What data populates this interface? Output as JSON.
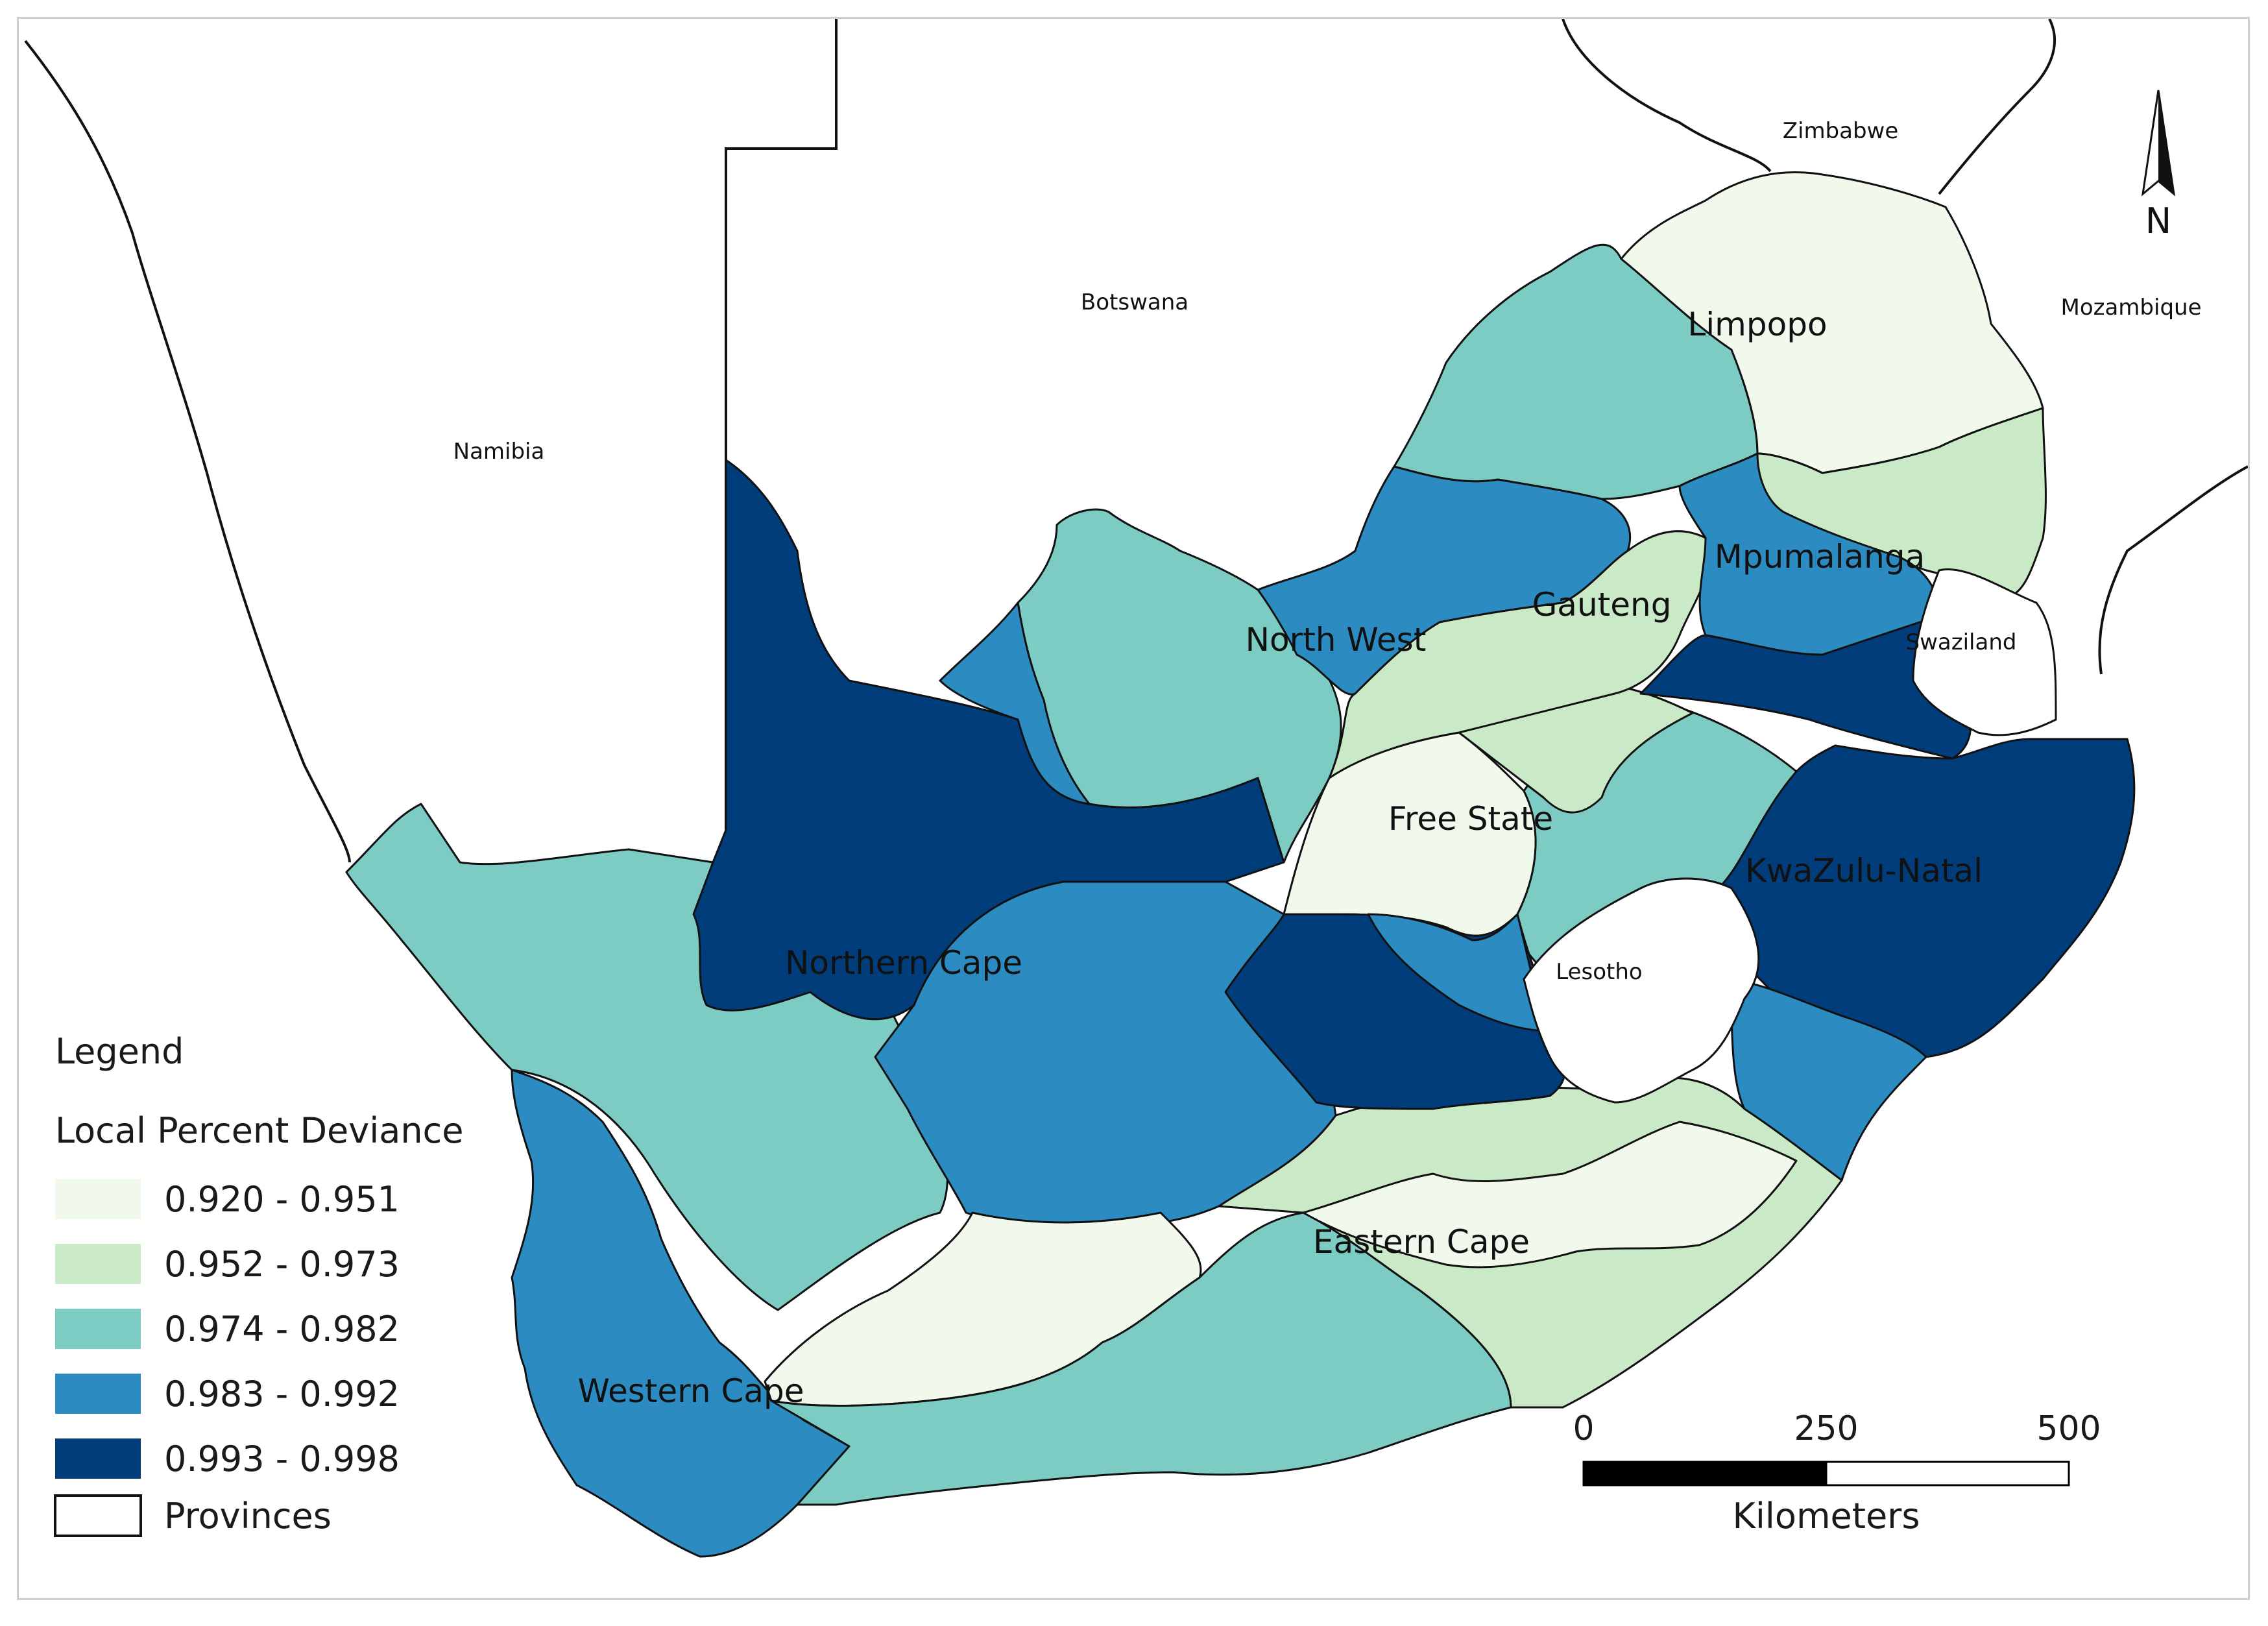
{
  "countries": {
    "namibia": "Namibia",
    "botswana": "Botswana",
    "zimbabwe": "Zimbabwe",
    "mozambique": "Mozambique",
    "swaziland": "Swaziland",
    "lesotho": "Lesotho"
  },
  "provinces": {
    "limpopo": "Limpopo",
    "mpumalanga": "Mpumalanga",
    "north_west": "North West",
    "gauteng": "Gauteng",
    "free_state": "Free State",
    "kwazulu_natal": "KwaZulu-Natal",
    "northern_cape": "Northern Cape",
    "eastern_cape": "Eastern Cape",
    "western_cape": "Western Cape"
  },
  "legend": {
    "title": "Legend",
    "subtitle": "Local Percent Deviance",
    "classes": [
      {
        "label": "0.920 - 0.951",
        "color": "#f1f9ed"
      },
      {
        "label": "0.952 - 0.973",
        "color": "#cae9c6"
      },
      {
        "label": "0.974 - 0.982",
        "color": "#7cccc4"
      },
      {
        "label": "0.983 - 0.992",
        "color": "#2c8cc2"
      },
      {
        "label": "0.993 - 0.998",
        "color": "#023d7b"
      }
    ],
    "provinces_label": "Provinces"
  },
  "scale_bar": {
    "ticks": [
      "0",
      "250",
      "500"
    ],
    "unit": "Kilometers"
  },
  "north_arrow": {
    "label": "N"
  }
}
